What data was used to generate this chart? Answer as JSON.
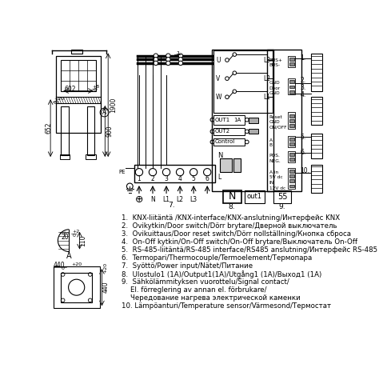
{
  "background_color": "#ffffff",
  "legend_items": [
    "1.  KNX-liitäntä /KNX-interface/KNX-anslutning/Интерфейс KNX",
    "2.  Ovikytkin/Door switch/Dörr brytare/Дверной выключатель",
    "3.  Ovikuittaus/Door reset switch/Dörr nollställning/Кнопка сброса",
    "4.  On-Off kytkin/On-Off switch/On-Off brytare/Выключатель On-Off",
    "5.  RS-485-liitäntä/RS-485 interface/RS485 anslutning/Интерфейс RS-485",
    "6.  Termopari/Thermocouple/Termoelement/Термопара",
    "7.  Syöttö/Power input/Nätet/Питание",
    "8.  Ulostulo1 (1A)/Output1(1A)/Utgång1 (1A)/Выход1 (1A)",
    "9.  Sähkölämmityksen vuorottelu/Signal contact/",
    "    El. förreglering av annan el. förbrukare/",
    "    Чередование нагрева электрической каменки",
    "10. Lämpöanturi/Temperature sensor/Värmesond/Термостат"
  ]
}
